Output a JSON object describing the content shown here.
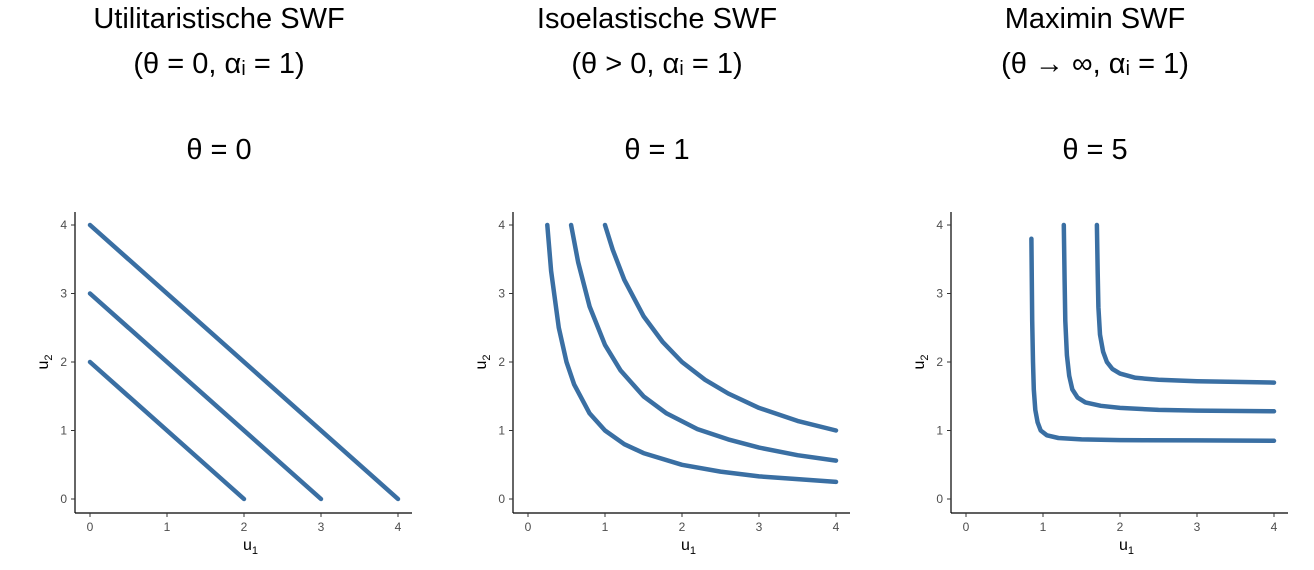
{
  "line_color": "#3a6fa3",
  "chart_data": [
    {
      "type": "line",
      "title_line1": "Utilitaristische SWF",
      "title_line2": "(θ = 0, αᵢ = 1)",
      "subtitle": "θ = 0",
      "xlabel": "u",
      "xlabel_sub": "1",
      "ylabel": "u",
      "ylabel_sub": "2",
      "xlim": [
        0,
        4
      ],
      "ylim": [
        0,
        4
      ],
      "xticks": [
        "0",
        "1",
        "2",
        "3",
        "4"
      ],
      "yticks": [
        "0",
        "1",
        "2",
        "3",
        "4"
      ],
      "grid": false,
      "series": [
        {
          "x": [
            0,
            2
          ],
          "y": [
            2,
            0
          ]
        },
        {
          "x": [
            0,
            3
          ],
          "y": [
            3,
            0
          ]
        },
        {
          "x": [
            0,
            4
          ],
          "y": [
            4,
            0
          ]
        }
      ]
    },
    {
      "type": "line",
      "title_line1": "Isoelastische SWF",
      "title_line2": "(θ > 0, αᵢ = 1)",
      "subtitle": "θ = 1",
      "xlabel": "u",
      "xlabel_sub": "1",
      "ylabel": "u",
      "ylabel_sub": "2",
      "xlim": [
        0,
        4
      ],
      "ylim": [
        0,
        4
      ],
      "xticks": [
        "0",
        "1",
        "2",
        "3",
        "4"
      ],
      "yticks": [
        "0",
        "1",
        "2",
        "3",
        "4"
      ],
      "grid": false,
      "series": [
        {
          "x": [
            0.25,
            0.3,
            0.4,
            0.5,
            0.6,
            0.8,
            1.0,
            1.25,
            1.5,
            2.0,
            2.5,
            3.0,
            3.5,
            4.0
          ],
          "y": [
            4.0,
            3.33,
            2.5,
            2.0,
            1.67,
            1.25,
            1.0,
            0.8,
            0.67,
            0.5,
            0.4,
            0.33,
            0.29,
            0.25
          ]
        },
        {
          "x": [
            0.56,
            0.65,
            0.8,
            1.0,
            1.2,
            1.5,
            1.8,
            2.2,
            2.6,
            3.0,
            3.5,
            4.0
          ],
          "y": [
            4.0,
            3.46,
            2.81,
            2.25,
            1.88,
            1.5,
            1.25,
            1.02,
            0.87,
            0.75,
            0.64,
            0.56
          ]
        },
        {
          "x": [
            1.0,
            1.1,
            1.25,
            1.5,
            1.75,
            2.0,
            2.3,
            2.6,
            3.0,
            3.5,
            4.0
          ],
          "y": [
            4.0,
            3.64,
            3.2,
            2.67,
            2.29,
            2.0,
            1.74,
            1.54,
            1.33,
            1.14,
            1.0
          ]
        }
      ]
    },
    {
      "type": "line",
      "title_line1": "Maximin SWF",
      "title_line2": "(θ → ∞, αᵢ = 1)",
      "subtitle": "θ = 5",
      "xlabel": "u",
      "xlabel_sub": "1",
      "ylabel": "u",
      "ylabel_sub": "2",
      "xlim": [
        0,
        4
      ],
      "ylim": [
        0,
        4
      ],
      "xticks": [
        "0",
        "1",
        "2",
        "3",
        "4"
      ],
      "yticks": [
        "0",
        "1",
        "2",
        "3",
        "4"
      ],
      "grid": false,
      "series": [
        {
          "x": [
            0.85,
            0.86,
            0.87,
            0.88,
            0.9,
            0.93,
            0.97,
            1.05,
            1.2,
            1.5,
            2.0,
            3.0,
            4.0
          ],
          "y": [
            3.8,
            2.6,
            2.0,
            1.6,
            1.3,
            1.12,
            1.0,
            0.93,
            0.89,
            0.87,
            0.86,
            0.855,
            0.85
          ]
        },
        {
          "x": [
            1.27,
            1.28,
            1.29,
            1.31,
            1.34,
            1.38,
            1.45,
            1.55,
            1.75,
            2.0,
            2.5,
            3.0,
            4.0
          ],
          "y": [
            4.0,
            3.2,
            2.6,
            2.1,
            1.8,
            1.6,
            1.48,
            1.41,
            1.36,
            1.33,
            1.3,
            1.29,
            1.28
          ]
        },
        {
          "x": [
            1.7,
            1.71,
            1.72,
            1.74,
            1.78,
            1.83,
            1.9,
            2.0,
            2.2,
            2.5,
            3.0,
            3.5,
            4.0
          ],
          "y": [
            4.0,
            3.3,
            2.8,
            2.4,
            2.15,
            2.0,
            1.9,
            1.83,
            1.77,
            1.74,
            1.72,
            1.71,
            1.7
          ]
        }
      ]
    }
  ]
}
